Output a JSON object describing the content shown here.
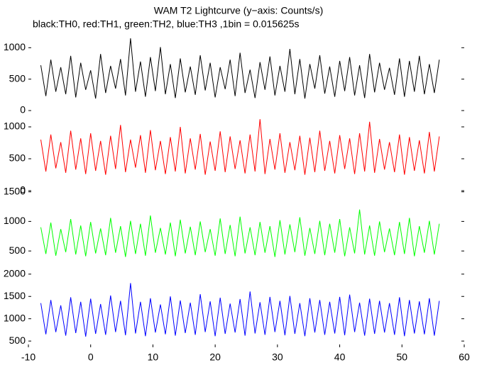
{
  "chart_data": {
    "type": "line",
    "title": "WAM T2 Lightcurve (y−axis: Counts/s)",
    "subtitle": "black:TH0, red:TH1, green:TH2, blue:TH3 ,1bin = 0.015625s",
    "xlim": [
      -10,
      60
    ],
    "xticks": [
      -10,
      0,
      10,
      20,
      30,
      40,
      50,
      60
    ],
    "x": [
      -8,
      -7.2,
      -6.4,
      -5.6,
      -4.8,
      -4,
      -3.2,
      -2.4,
      -1.6,
      -0.8,
      0,
      0.8,
      1.6,
      2.4,
      3.2,
      4,
      4.8,
      5.6,
      6.4,
      7.2,
      8,
      8.8,
      9.6,
      10.4,
      11.2,
      12,
      12.8,
      13.6,
      14.4,
      15.2,
      16,
      16.8,
      17.6,
      18.4,
      19.2,
      20,
      20.8,
      21.6,
      22.4,
      23.2,
      24,
      24.8,
      25.6,
      26.4,
      27.2,
      28,
      28.8,
      29.6,
      30.4,
      31.2,
      32,
      32.8,
      33.6,
      34.4,
      35.2,
      36,
      36.8,
      37.6,
      38.4,
      39.2,
      40,
      40.8,
      41.6,
      42.4,
      43.2,
      44,
      44.8,
      45.6,
      46.4,
      47.2,
      48,
      48.8,
      49.6,
      50.4,
      51.2,
      52,
      52.8,
      53.6,
      54.4,
      55.2,
      56
    ],
    "series": [
      {
        "color": "#000000",
        "ylim": [
          0,
          1150
        ],
        "yticks": [
          0,
          500,
          1000
        ],
        "values": [
          720,
          230,
          810,
          300,
          690,
          260,
          870,
          210,
          760,
          330,
          640,
          190,
          900,
          280,
          710,
          350,
          820,
          240,
          1150,
          300,
          780,
          220,
          850,
          310,
          1010,
          260,
          740,
          200,
          830,
          290,
          700,
          250,
          880,
          320,
          760,
          210,
          690,
          340,
          810,
          230,
          920,
          280,
          650,
          200,
          770,
          330,
          860,
          240,
          710,
          300,
          980,
          260,
          820,
          190,
          740,
          350,
          880,
          270,
          700,
          220,
          790,
          310,
          850,
          240,
          720,
          200,
          900,
          290,
          760,
          330,
          680,
          250,
          830,
          220,
          790,
          300,
          870,
          260,
          740,
          280,
          810
        ]
      },
      {
        "color": "#ff0000",
        "ylim": [
          0,
          1200
        ],
        "yticks": [
          0,
          500,
          1000
        ],
        "values": [
          800,
          300,
          880,
          350,
          760,
          280,
          940,
          330,
          820,
          260,
          900,
          310,
          780,
          250,
          860,
          340,
          1030,
          290,
          800,
          360,
          870,
          280,
          950,
          320,
          780,
          260,
          840,
          300,
          1000,
          270,
          820,
          330,
          890,
          250,
          770,
          310,
          930,
          290,
          850,
          340,
          790,
          270,
          880,
          300,
          1120,
          260,
          810,
          330,
          900,
          280,
          760,
          320,
          860,
          250,
          830,
          290,
          940,
          310,
          780,
          270,
          870,
          340,
          820,
          260,
          900,
          300,
          1080,
          280,
          810,
          330,
          760,
          290,
          880,
          250,
          840,
          310,
          790,
          270,
          920,
          300,
          850
        ]
      },
      {
        "color": "#00ff00",
        "ylim": [
          190,
          1520
        ],
        "yticks": [
          500,
          1000,
          1500
        ],
        "values": [
          900,
          450,
          980,
          420,
          870,
          480,
          1040,
          440,
          930,
          410,
          990,
          460,
          880,
          430,
          1060,
          470,
          920,
          400,
          1010,
          450,
          960,
          420,
          1100,
          470,
          890,
          440,
          980,
          410,
          1030,
          460,
          910,
          430,
          1000,
          480,
          870,
          420,
          1050,
          450,
          940,
          410,
          1080,
          460,
          900,
          430,
          990,
          470,
          920,
          400,
          1020,
          440,
          950,
          480,
          1070,
          420,
          890,
          450,
          1010,
          430,
          960,
          470,
          1040,
          410,
          900,
          460,
          1200,
          440,
          930,
          420,
          1000,
          480,
          880,
          430,
          990,
          450,
          1060,
          410,
          920,
          470,
          1010,
          440,
          960
        ]
      },
      {
        "color": "#0000ff",
        "ylim": [
          360,
          2060
        ],
        "yticks": [
          500,
          1000,
          1500,
          2000
        ],
        "values": [
          1350,
          650,
          1420,
          700,
          1300,
          620,
          1480,
          680,
          1380,
          600,
          1450,
          660,
          1330,
          640,
          1520,
          700,
          1400,
          630,
          1800,
          670,
          1380,
          610,
          1460,
          690,
          1320,
          650,
          1500,
          620,
          1410,
          680,
          1360,
          640,
          1550,
          700,
          1390,
          610,
          1470,
          660,
          1340,
          690,
          1440,
          620,
          1610,
          670,
          1370,
          640,
          1490,
          700,
          1400,
          630,
          1510,
          660,
          1350,
          610,
          1460,
          690,
          1420,
          640,
          1380,
          670,
          1490,
          630,
          1540,
          700,
          1360,
          620,
          1450,
          660,
          1400,
          690,
          1350,
          640,
          1480,
          610,
          1420,
          670,
          1390,
          650,
          1460,
          620,
          1400
        ]
      }
    ]
  }
}
